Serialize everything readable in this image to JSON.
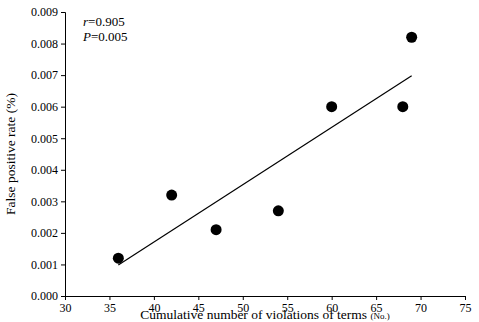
{
  "chart_data": {
    "type": "scatter",
    "x_label": "Cumulative number of violations of terms (No.)",
    "y_label": "False positive rate (%)",
    "x": [
      36,
      42,
      47,
      54,
      60,
      68,
      69
    ],
    "values": [
      0.0012,
      0.0032,
      0.0021,
      0.0027,
      0.006,
      0.006,
      0.0082
    ],
    "color": "#000000",
    "marker": "circle",
    "trend": {
      "x": [
        36,
        69
      ],
      "values": [
        0.00098,
        0.00698
      ]
    },
    "annotations": [
      "r=0.905",
      "P=0.005"
    ],
    "xlim": [
      30,
      75
    ],
    "xticks": [
      30,
      35,
      40,
      45,
      50,
      55,
      60,
      65,
      70,
      75
    ],
    "ylim": [
      0,
      0.009
    ],
    "yticks": [
      {
        "value": 0,
        "label": "0.000"
      },
      {
        "value": 0.001,
        "label": "0.001"
      },
      {
        "value": 0.002,
        "label": "0.002"
      },
      {
        "value": 0.003,
        "label": "0.003"
      },
      {
        "value": 0.004,
        "label": "0.004"
      },
      {
        "value": 0.005,
        "label": "0.005"
      },
      {
        "value": 0.006,
        "label": "0.006"
      },
      {
        "value": 0.007,
        "label": "0.007"
      },
      {
        "value": 0.008,
        "label": "0.008"
      },
      {
        "value": 0.009,
        "label": "0.009"
      }
    ],
    "grid": false
  }
}
